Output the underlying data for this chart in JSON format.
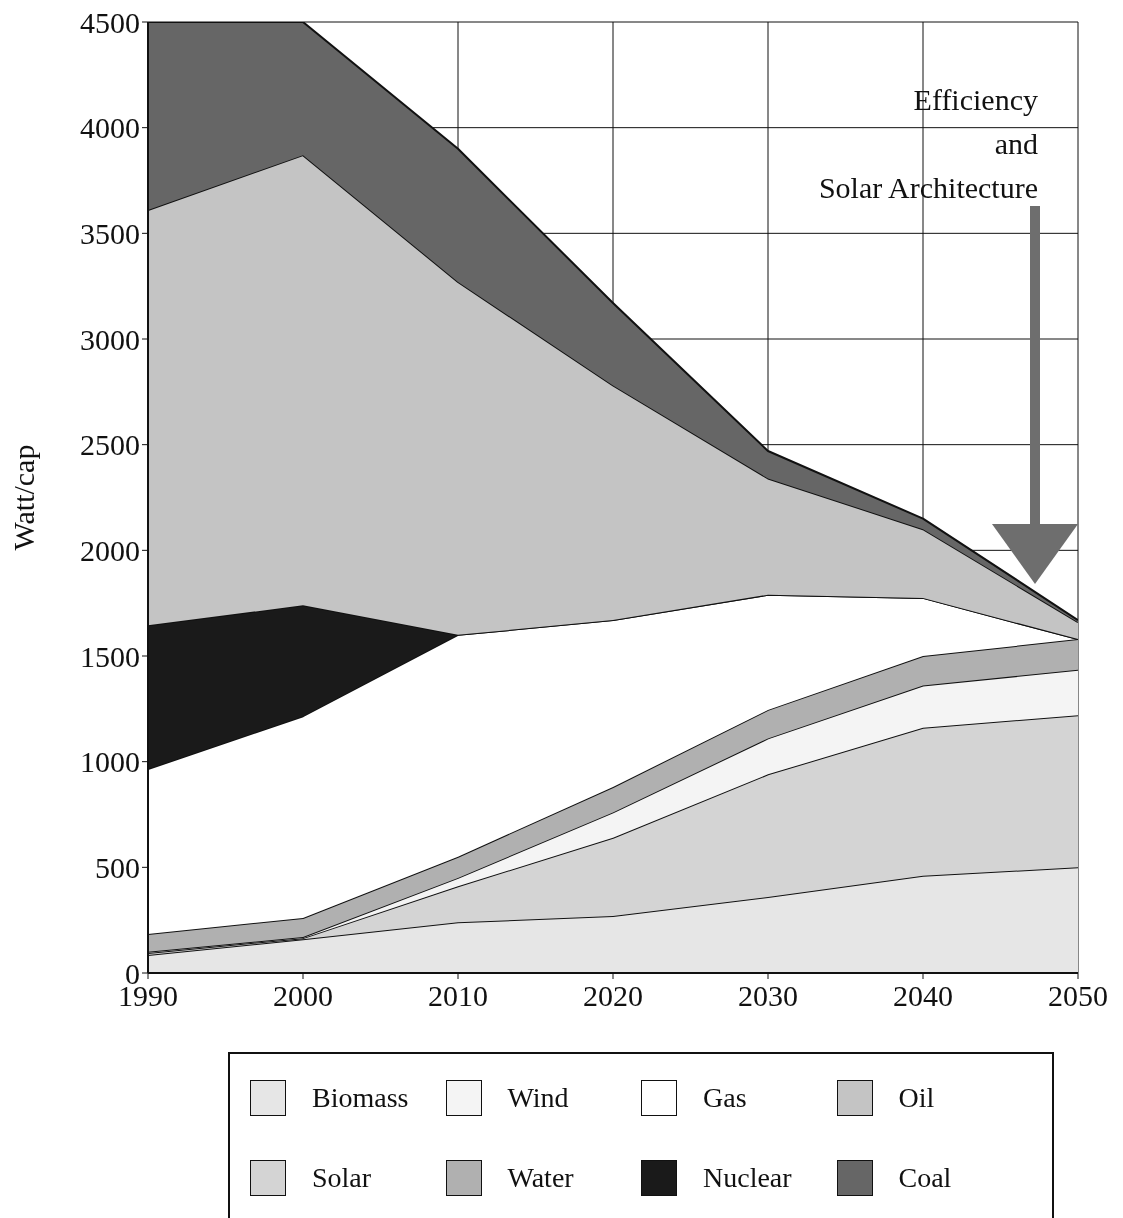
{
  "chart_data": {
    "type": "area",
    "stacked": true,
    "ylabel": "Watt/cap",
    "x": [
      1990,
      2000,
      2010,
      2020,
      2030,
      2040,
      2050
    ],
    "xlim": [
      1990,
      2050
    ],
    "xticks": [
      1990,
      2000,
      2010,
      2020,
      2030,
      2040,
      2050
    ],
    "ylim": [
      0,
      4500
    ],
    "yticks": [
      0,
      500,
      1000,
      1500,
      2000,
      2500,
      3000,
      3500,
      4000,
      4500
    ],
    "grid": true,
    "legend": "bottom",
    "series": [
      {
        "name": "Biomass",
        "color": "#e6e6e6",
        "values": [
          85,
          160,
          240,
          270,
          360,
          460,
          500
        ]
      },
      {
        "name": "Solar",
        "color": "#d4d4d4",
        "values": [
          10,
          5,
          170,
          370,
          580,
          700,
          720
        ]
      },
      {
        "name": "Wind",
        "color": "#f4f4f4",
        "values": [
          5,
          5,
          40,
          120,
          170,
          200,
          215
        ]
      },
      {
        "name": "Water",
        "color": "#b0b0b0",
        "values": [
          85,
          90,
          100,
          120,
          135,
          140,
          145
        ]
      },
      {
        "name": "Gas",
        "color": "#ffffff",
        "values": [
          780,
          955,
          1050,
          790,
          545,
          275,
          0
        ]
      },
      {
        "name": "Nuclear",
        "color": "#1a1a1a",
        "values": [
          680,
          525,
          0,
          0,
          0,
          0,
          0
        ]
      },
      {
        "name": "Oil",
        "color": "#c4c4c4",
        "values": [
          1965,
          2130,
          1670,
          1110,
          550,
          325,
          80
        ]
      },
      {
        "name": "Coal",
        "color": "#666666",
        "values": [
          890,
          630,
          630,
          390,
          130,
          50,
          10
        ]
      }
    ],
    "annotations": [
      "Efficiency\nand\nSolar Architecture"
    ]
  }
}
